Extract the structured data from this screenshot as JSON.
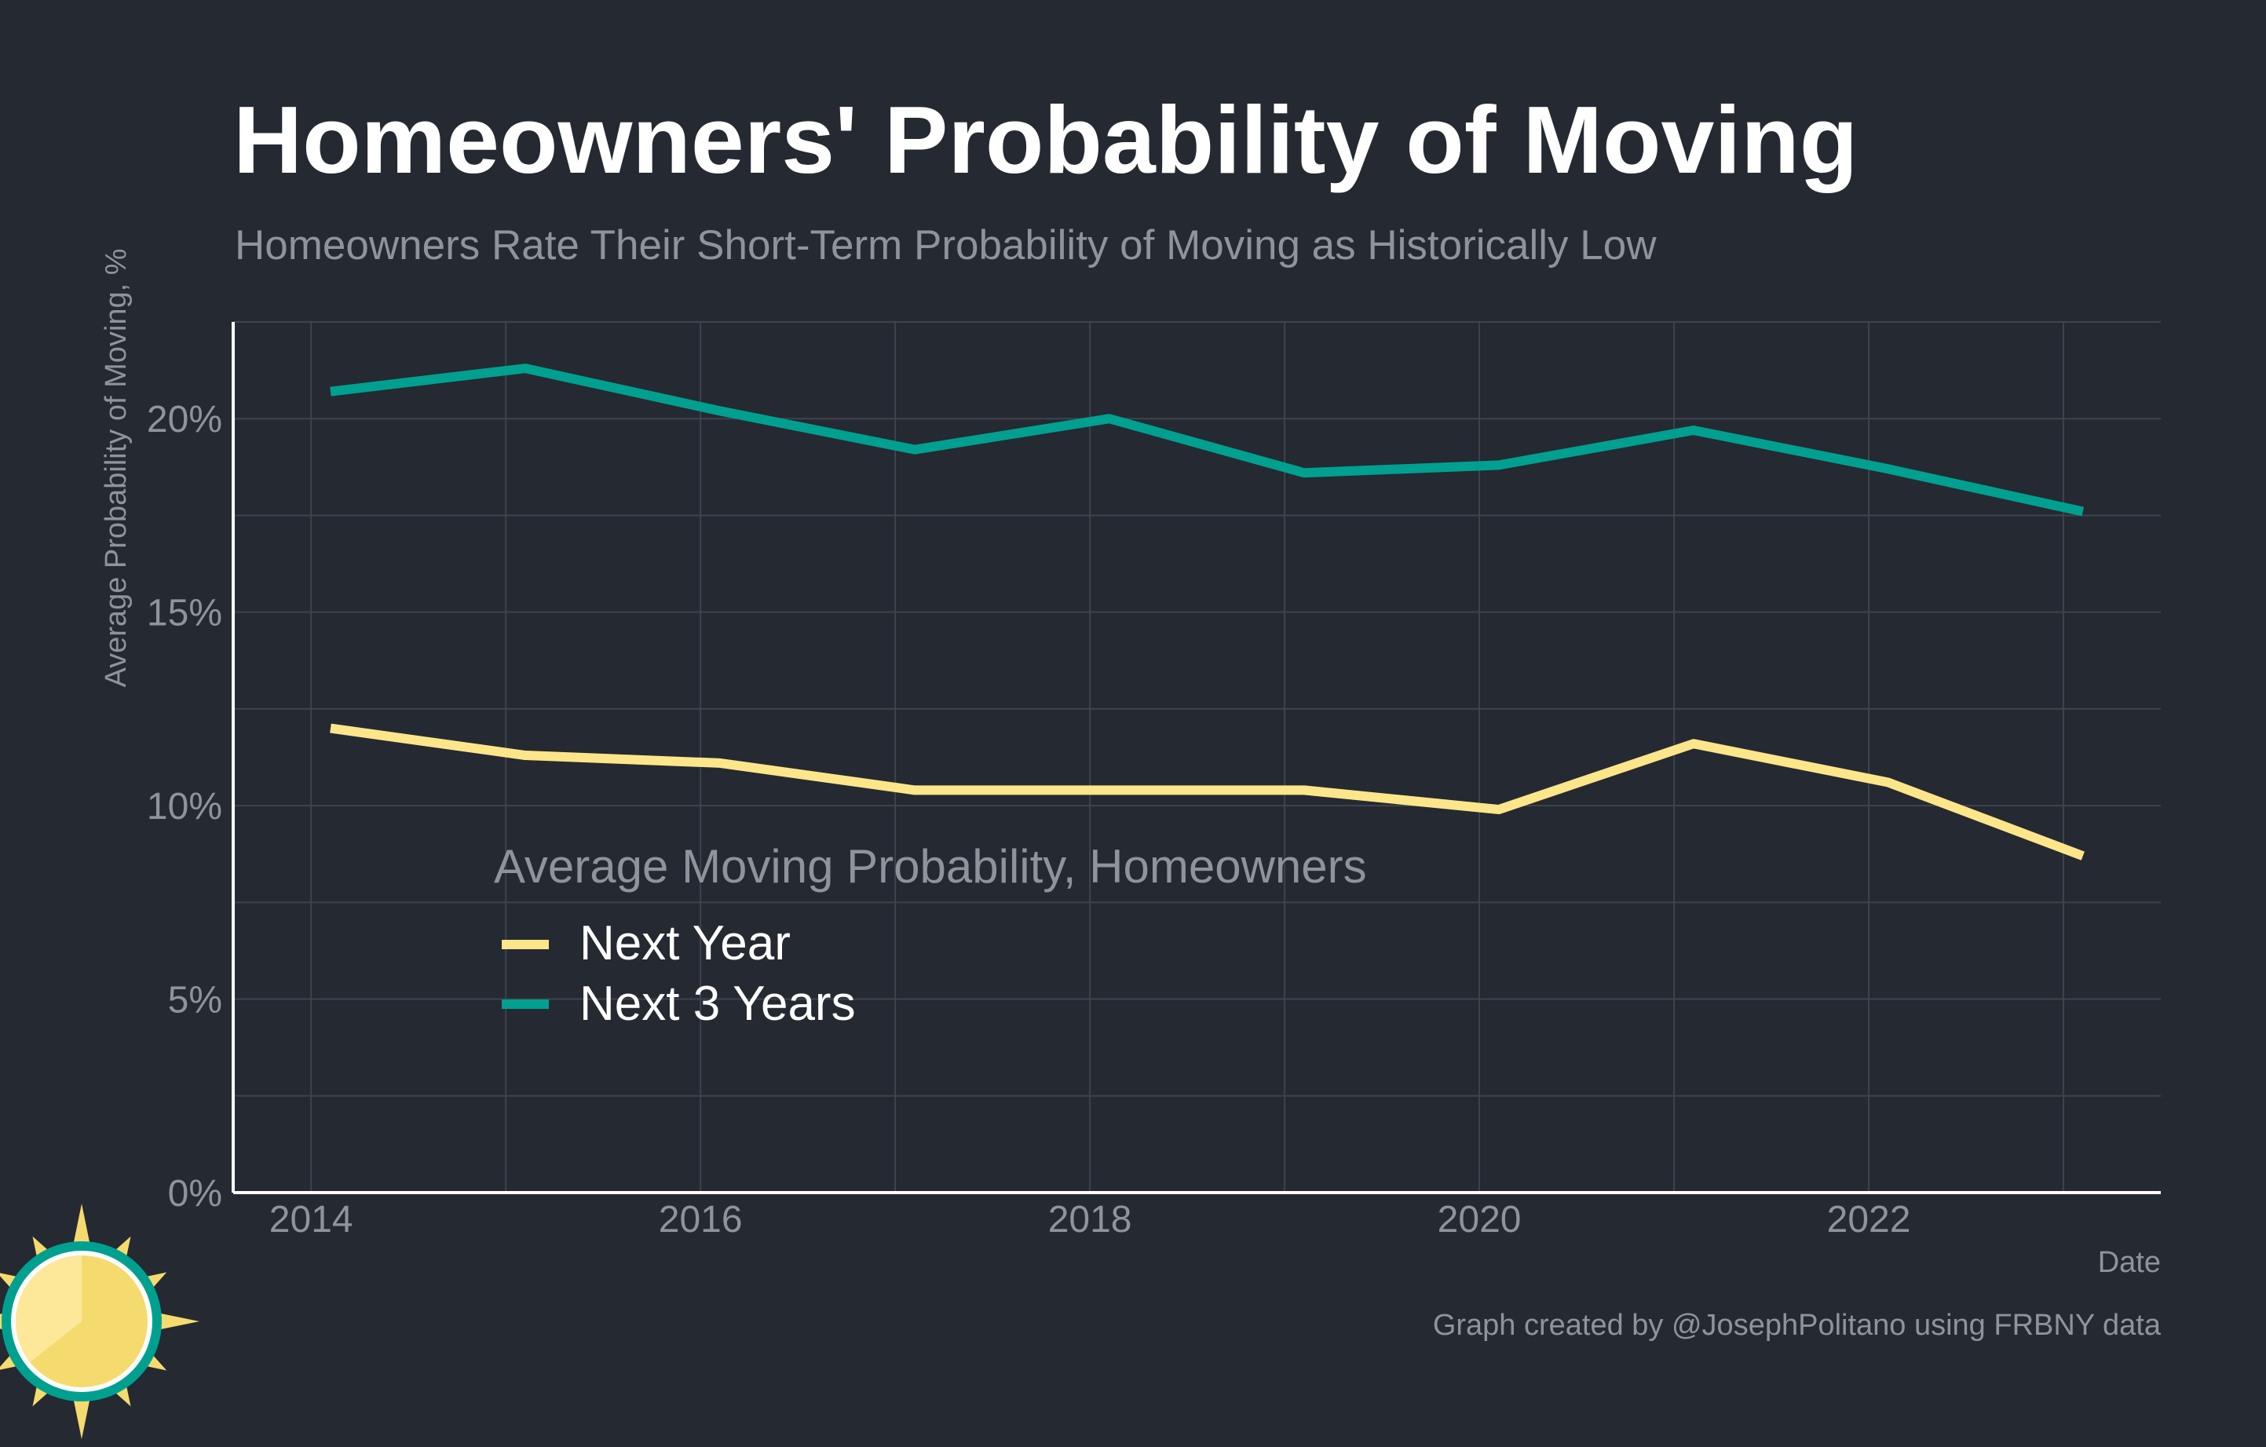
{
  "chart_data": {
    "type": "line",
    "title": "Homeowners' Probability of Moving",
    "subtitle": "Homeowners Rate Their Short-Term Probability of Moving as Historically Low",
    "ylabel": "Average Probability of Moving, %",
    "xlabel": "Date",
    "caption": "Graph created by @JosephPolitano using FRBNY data",
    "legend_title": "Average Moving Probability, Homeowners",
    "legend_position": "inside-lower-left",
    "grid": true,
    "x_ticks": [
      "2014",
      "2016",
      "2018",
      "2020",
      "2022"
    ],
    "y_ticks": [
      "0%",
      "5%",
      "10%",
      "15%",
      "20%"
    ],
    "xlim": [
      2013.6,
      2023.5
    ],
    "ylim": [
      0,
      22.5
    ],
    "x": [
      2014.1,
      2015.1,
      2016.1,
      2017.1,
      2018.1,
      2019.1,
      2020.1,
      2021.1,
      2022.1,
      2023.1
    ],
    "series": [
      {
        "name": "Next Year",
        "color": "#FDE68A",
        "values": [
          12.0,
          11.3,
          11.1,
          10.4,
          10.4,
          10.4,
          9.9,
          11.6,
          10.6,
          8.7
        ]
      },
      {
        "name": "Next 3 Years",
        "color": "#00A091",
        "values": [
          20.7,
          21.3,
          20.2,
          19.2,
          20.0,
          18.6,
          18.8,
          19.7,
          18.7,
          17.6
        ]
      }
    ]
  },
  "logo": {
    "icon": "sun-logo-icon",
    "ring_color": "#00A091",
    "sun_color": "#F5DB6E"
  },
  "colors": {
    "background": "#252932",
    "grid": "#3E434D",
    "axis": "#FFFFFF",
    "muted_text": "#8E939C"
  }
}
